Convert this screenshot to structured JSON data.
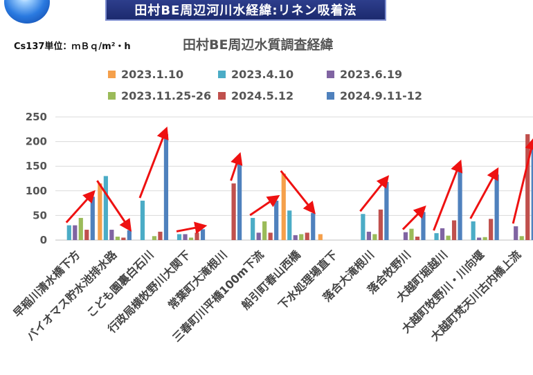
{
  "header": {
    "banner_title": "田村BE周辺河川水経緯:リネン吸着法"
  },
  "unit_label": "Cs137単位：ｍＢｑ/m²・h",
  "chart_data": {
    "type": "bar",
    "title": "田村BE周辺水質調査経緯",
    "xlabel": "",
    "ylabel": "",
    "ylim": [
      0,
      250
    ],
    "yticks": [
      0,
      50,
      100,
      150,
      200,
      250
    ],
    "grid": true,
    "legend_position": "top",
    "categories": [
      "早稲川清水橋下方",
      "バイオマス貯水池排水路",
      "こども園裏白石川",
      "行政局横牧野川大関下",
      "常葉町大滝根川",
      "三春町川平橋100m下流",
      "船引町春山西橋",
      "下水処理場直下",
      "落合大滝根川",
      "落合牧野川",
      "大越町堀越川",
      "大越町牧野川・川向堰",
      "大越町梵天川古内橋上流"
    ],
    "series": [
      {
        "name": "2023.1.10",
        "color": "#f5a04b",
        "values": [
          null,
          115,
          null,
          null,
          null,
          null,
          135,
          12,
          null,
          null,
          null,
          null,
          null
        ]
      },
      {
        "name": "2023.4.10",
        "color": "#4bacc6",
        "values": [
          30,
          130,
          80,
          12,
          null,
          45,
          60,
          null,
          53,
          null,
          14,
          38,
          null
        ]
      },
      {
        "name": "2023.6.19",
        "color": "#8064a2",
        "values": [
          30,
          21,
          null,
          12,
          null,
          15,
          10,
          null,
          17,
          16,
          24,
          5,
          28
        ]
      },
      {
        "name": "2023.11.25-26",
        "color": "#9bbb59",
        "values": [
          45,
          7,
          8,
          5,
          null,
          38,
          12,
          null,
          12,
          23,
          9,
          6,
          8
        ]
      },
      {
        "name": "2024.5.12",
        "color": "#c0504d",
        "values": [
          21,
          5,
          17,
          15,
          115,
          15,
          15,
          null,
          62,
          7,
          40,
          43,
          215
        ]
      },
      {
        "name": "2024.9.11-12",
        "color": "#4f81bd",
        "values": [
          88,
          20,
          215,
          22,
          163,
          80,
          55,
          null,
          118,
          57,
          148,
          133,
          193
        ]
      }
    ]
  }
}
